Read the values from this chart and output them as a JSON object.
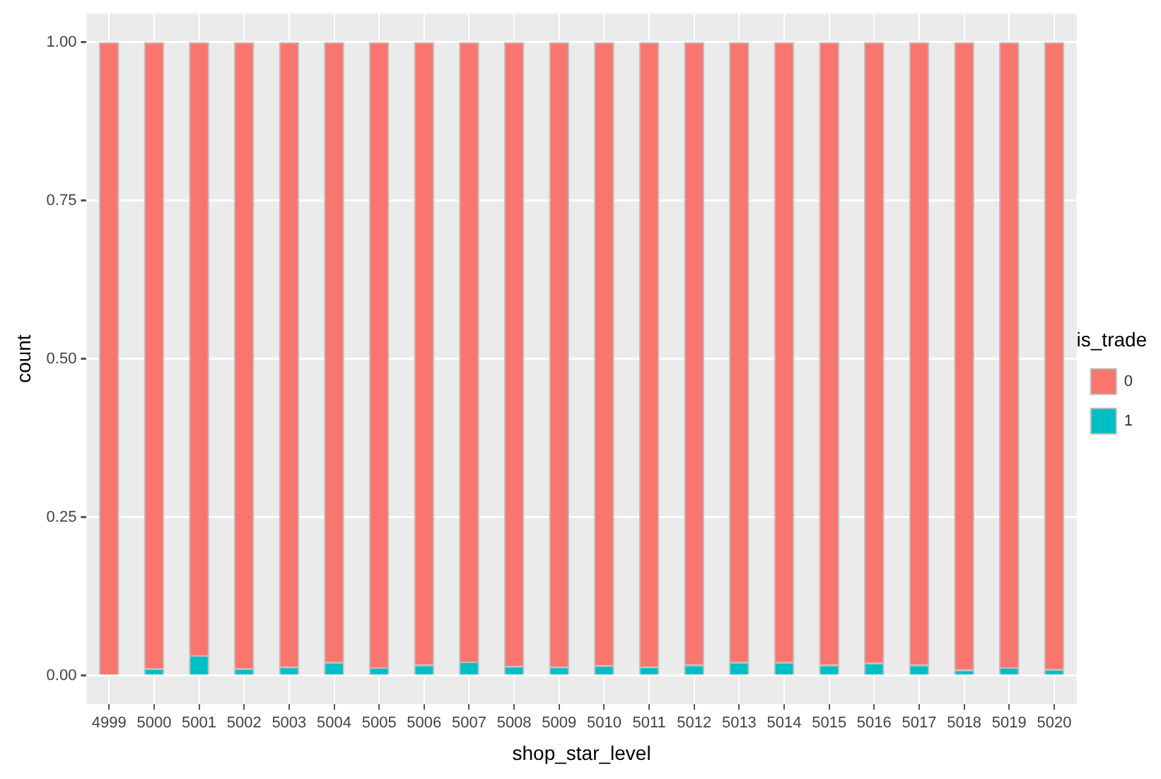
{
  "chart_data": {
    "type": "bar",
    "stacked": true,
    "xlabel": "shop_star_level",
    "ylabel": "count",
    "legend_title": "is_trade",
    "legend": "right",
    "grid": true,
    "categories": [
      "4999",
      "5000",
      "5001",
      "5002",
      "5003",
      "5004",
      "5005",
      "5006",
      "5007",
      "5008",
      "5009",
      "5010",
      "5011",
      "5012",
      "5013",
      "5014",
      "5015",
      "5016",
      "5017",
      "5018",
      "5019",
      "5020"
    ],
    "series": [
      {
        "name": "1",
        "color": "#00bfc4",
        "values": [
          0,
          0.011,
          0.032,
          0.011,
          0.014,
          0.021,
          0.013,
          0.017,
          0.022,
          0.015,
          0.014,
          0.016,
          0.014,
          0.017,
          0.021,
          0.021,
          0.017,
          0.02,
          0.017,
          0.009,
          0.013,
          0.01
        ]
      },
      {
        "name": "0",
        "color": "#f8766d",
        "values": [
          1,
          0.989,
          0.968,
          0.989,
          0.986,
          0.979,
          0.987,
          0.983,
          0.978,
          0.985,
          0.986,
          0.984,
          0.986,
          0.983,
          0.979,
          0.979,
          0.983,
          0.98,
          0.983,
          0.991,
          0.987,
          0.99
        ]
      }
    ],
    "ylim": [
      -0.045,
      1.045
    ],
    "yticks": [
      {
        "value": 0,
        "label": "0.00"
      },
      {
        "value": 0.25,
        "label": "0.25"
      },
      {
        "value": 0.5,
        "label": "0.50"
      },
      {
        "value": 0.75,
        "label": "0.75"
      },
      {
        "value": 1,
        "label": "1.00"
      }
    ]
  }
}
